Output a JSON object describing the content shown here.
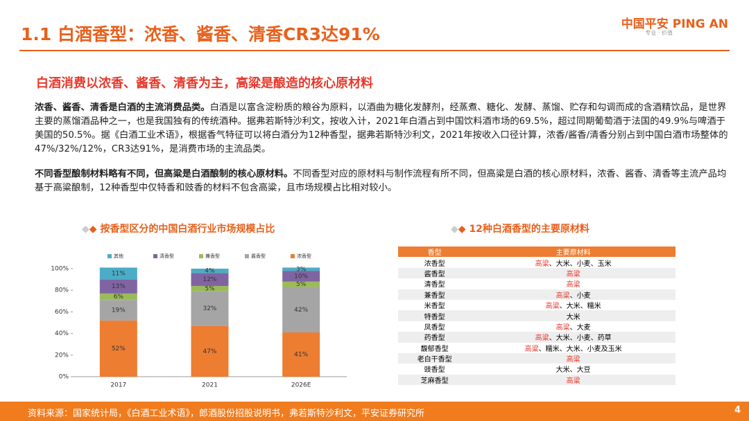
{
  "header": {
    "title": "1.1 白酒香型：浓香、酱香、清香CR3达91%",
    "logo": "中国平安 PING AN",
    "logo_sub": "专业 · 价值"
  },
  "section_title": "白酒消费以浓香、酱香、清香为主，高粱是酿造的核心原材料",
  "paragraphs": [
    {
      "bold": "浓香、酱香、清香是白酒的主流消费品类。",
      "text": "白酒是以富含淀粉质的粮谷为原料，以酒曲为糖化发酵剂，经蒸煮、糖化、发酵、蒸馏、贮存和勾调而成的含酒精饮品，是世界主要的蒸馏酒品种之一，也是我国独有的传统酒种。据弗若斯特沙利文，按收入计，2021年白酒占到中国饮料酒市场的69.5%，超过同期葡萄酒于法国的49.9%与啤酒于美国的50.5%。据《白酒工业术语》，根据香气特征可以将白酒分为12种香型，据弗若斯特沙利文，2021年按收入口径计算，浓香/酱香/清香分别占到中国白酒市场整体的47%/32%/12%，CR3达91%，是消费市场的主流品类。"
    },
    {
      "bold": "不同香型酿制材料略有不同，但高粱是白酒酿制的核心原材料。",
      "text": "不同香型对应的原材料与制作流程有所不同，但高粱是白酒的核心原材料，浓香、酱香、清香等主流产品均基于高粱酿制，12种香型中仅特香和豉香的材料不包含高粱，且市场规模占比相对较小。"
    }
  ],
  "chart_data": {
    "type": "bar",
    "stacked": true,
    "title": "按香型区分的中国白酒行业市场规模占比",
    "categories": [
      "2017",
      "2021",
      "2026E"
    ],
    "series": [
      {
        "name": "其他",
        "color": "#4BACC6",
        "values": [
          11,
          4,
          3
        ],
        "value_labels": [
          "11%",
          "4%",
          "3%"
        ]
      },
      {
        "name": "清香型",
        "color": "#8064A2",
        "values": [
          13,
          12,
          10
        ],
        "value_labels": [
          "13%",
          "12%",
          "10%"
        ]
      },
      {
        "name": "兼香型",
        "color": "#9BBB59",
        "values": [
          6,
          5,
          5
        ],
        "value_labels": [
          "6%",
          "5%",
          "5%"
        ]
      },
      {
        "name": "酱香型",
        "color": "#A5A5A5",
        "values": [
          19,
          32,
          42
        ],
        "value_labels": [
          "19%",
          "32%",
          "42%"
        ]
      },
      {
        "name": "浓香型",
        "color": "#ED7D31",
        "values": [
          52,
          47,
          41
        ],
        "value_labels": [
          "52%",
          "47%",
          "41%"
        ]
      }
    ],
    "ylim": [
      0,
      100
    ],
    "yticks": [
      {
        "value": 0,
        "label": "0%"
      },
      {
        "value": 20,
        "label": "20%"
      },
      {
        "value": 40,
        "label": "40%"
      },
      {
        "value": 60,
        "label": "60%"
      },
      {
        "value": 80,
        "label": "80%"
      },
      {
        "value": 100,
        "label": "100%"
      }
    ]
  },
  "table": {
    "title": "12种白酒香型的主要原材料",
    "headers": [
      "香型",
      "主要原材料"
    ],
    "rows": [
      {
        "type": "浓香型",
        "materials": [
          {
            "text": "高粱",
            "color": "#E8382B"
          },
          {
            "text": "、大米、小麦、玉米"
          }
        ]
      },
      {
        "type": "酱香型",
        "materials": [
          {
            "text": "高粱",
            "color": "#E8382B"
          }
        ]
      },
      {
        "type": "清香型",
        "materials": [
          {
            "text": "高粱",
            "color": "#E8382B"
          }
        ]
      },
      {
        "type": "兼香型",
        "materials": [
          {
            "text": "高粱",
            "color": "#E8382B"
          },
          {
            "text": "、小麦"
          }
        ]
      },
      {
        "type": "米香型",
        "materials": [
          {
            "text": "高粱",
            "color": "#E8382B"
          },
          {
            "text": "、大米、糯米"
          }
        ]
      },
      {
        "type": "特香型",
        "materials": [
          {
            "text": "大米"
          }
        ]
      },
      {
        "type": "凤香型",
        "materials": [
          {
            "text": "高粱",
            "color": "#E8382B"
          },
          {
            "text": "、大麦"
          }
        ]
      },
      {
        "type": "药香型",
        "materials": [
          {
            "text": "高粱",
            "color": "#E8382B"
          },
          {
            "text": "、大米、小麦、药草"
          }
        ]
      },
      {
        "type": "馥郁香型",
        "materials": [
          {
            "text": "高粱",
            "color": "#E8382B"
          },
          {
            "text": "、糯米、大米、小麦及玉米"
          }
        ]
      },
      {
        "type": "老白干香型",
        "materials": [
          {
            "text": "高粱",
            "color": "#E8382B"
          }
        ]
      },
      {
        "type": "豉香型",
        "materials": [
          {
            "text": "大米、大豆"
          }
        ]
      },
      {
        "type": "芝麻香型",
        "materials": [
          {
            "text": "高粱",
            "color": "#E8382B"
          }
        ]
      }
    ]
  },
  "footer": {
    "source": "资料来源：国家统计局，《白酒工业术语》，郎酒股份招股说明书，弗若斯特沙利文，平安证券研究所",
    "page": "4"
  }
}
